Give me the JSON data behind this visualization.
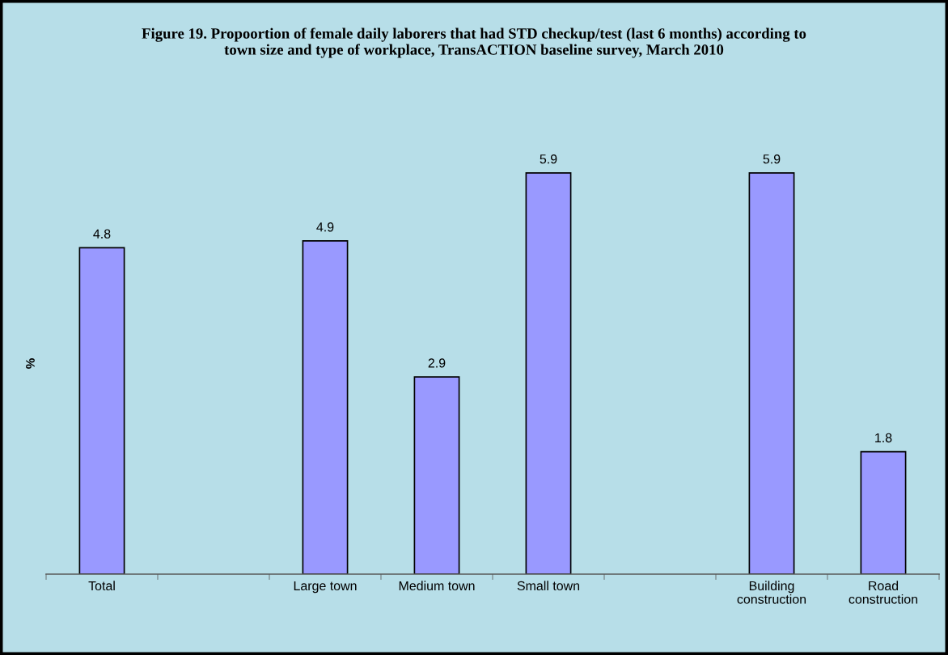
{
  "chart_data": {
    "type": "bar",
    "title": "Figure 19. Propoortion of female daily laborers that had STD checkup/test (last 6 months) according to\ntown size and type of workplace, TransACTION baseline survey, March 2010",
    "ylabel": "%",
    "categories": [
      "Total",
      null,
      "Large town",
      "Medium town",
      "Small town",
      null,
      "Building\nconstruction",
      "Road\nconstruction"
    ],
    "values": [
      4.8,
      null,
      4.9,
      2.9,
      5.9,
      null,
      5.9,
      1.8
    ],
    "color": "#9999ff",
    "data_labels": true,
    "grid": false,
    "legend": false
  }
}
